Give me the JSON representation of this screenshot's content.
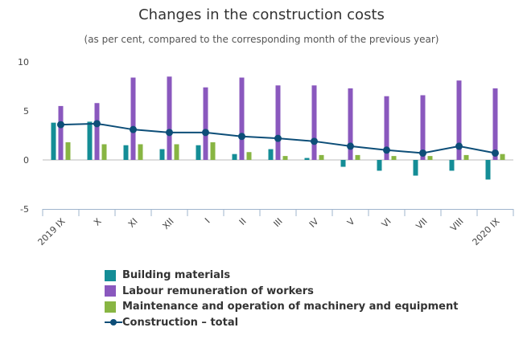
{
  "chart_data": {
    "type": "bar",
    "title": "Changes in the construction costs",
    "subtitle": "(as per cent, compared to the corresponding month of the previous year)",
    "categories": [
      "2019 IX",
      "X",
      "XI",
      "XII",
      "I",
      "II",
      "III",
      "IV",
      "V",
      "VI",
      "VII",
      "VIII",
      "2020 IX"
    ],
    "ylim": [
      -5,
      10
    ],
    "yticks": [
      -5,
      0,
      5,
      10
    ],
    "grid": false,
    "legend_position": "bottom-left",
    "series": [
      {
        "name": "Building materials",
        "type": "bar",
        "color": "#148d96",
        "values": [
          3.8,
          3.9,
          1.5,
          1.1,
          1.5,
          0.6,
          1.1,
          0.2,
          -0.7,
          -1.1,
          -1.6,
          -1.1,
          -2.0
        ]
      },
      {
        "name": "Labour remuneration of workers",
        "type": "bar",
        "color": "#8a58be",
        "values": [
          5.5,
          5.8,
          8.4,
          8.5,
          7.4,
          8.4,
          7.6,
          7.6,
          7.3,
          6.5,
          6.6,
          8.1,
          7.3
        ]
      },
      {
        "name": "Maintenance and operation of machinery and equipment",
        "type": "bar",
        "color": "#88b543",
        "values": [
          1.8,
          1.6,
          1.6,
          1.6,
          1.8,
          0.8,
          0.4,
          0.5,
          0.5,
          0.4,
          0.4,
          0.5,
          0.6
        ]
      },
      {
        "name": "Construction – total",
        "type": "line",
        "color": "#0d4e78",
        "values": [
          3.6,
          3.7,
          3.1,
          2.8,
          2.8,
          2.4,
          2.2,
          1.9,
          1.4,
          1.0,
          0.7,
          1.4,
          0.7
        ]
      }
    ]
  }
}
